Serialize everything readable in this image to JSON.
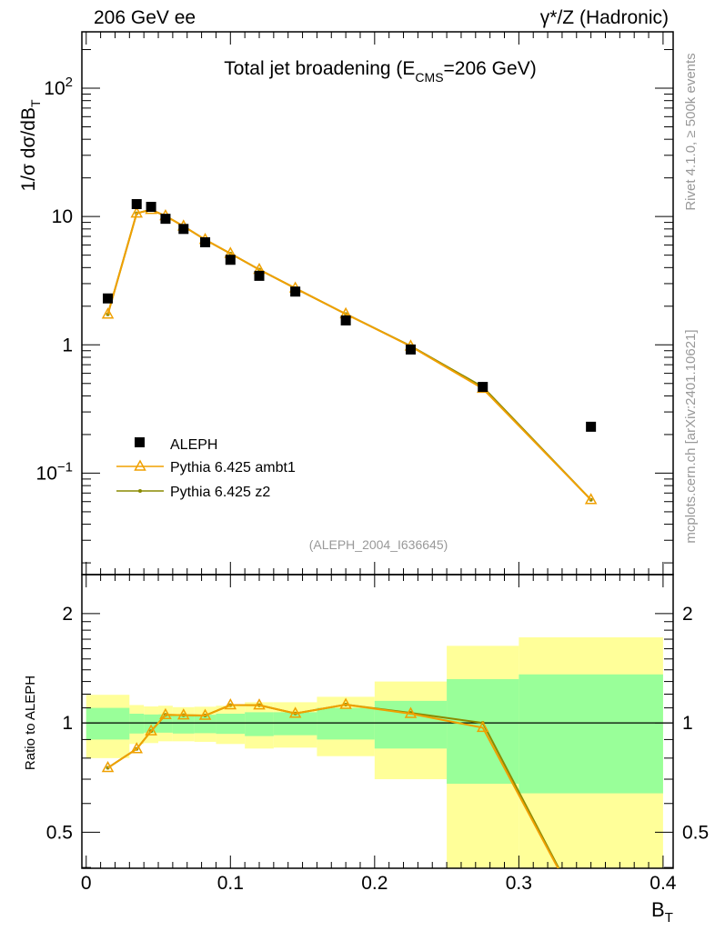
{
  "header": {
    "left": "206 GeV ee",
    "right": "γ*/Z (Hadronic)"
  },
  "side": {
    "rivet": "Rivet 4.1.0, ≥ 500k events",
    "mcplots": "mcplots.cern.ch [arXiv:2401.10621]"
  },
  "chart_data": {
    "type": "scatter",
    "title": "Total jet broadening (E_CMS=206 GeV)",
    "title_main": "Total jet broadening (E",
    "title_sub": "CMS",
    "title_end": "=206 GeV)",
    "analysis_id": "(ALEPH_2004_I636645)",
    "xlabel": "B",
    "xlabel_sub": "T",
    "ylabel": "1/σ  dσ/dB",
    "ylabel_sub": "T",
    "ratio_ylabel": "Ratio to ALEPH",
    "xlim": [
      -0.003,
      0.407
    ],
    "ylim": [
      0.0162,
      275
    ],
    "ratio_ylim": [
      0.398,
      2.56
    ],
    "x_ticks": [
      "0",
      "0.1",
      "0.2",
      "0.3",
      "0.4"
    ],
    "x_tick_values": [
      0,
      0.1,
      0.2,
      0.3,
      0.4
    ],
    "y_ticks": [
      {
        "v": 0.1,
        "base": "10",
        "exp": "−1"
      },
      {
        "v": 1,
        "base": "1",
        "exp": ""
      },
      {
        "v": 10,
        "base": "10",
        "exp": ""
      },
      {
        "v": 100,
        "base": "10",
        "exp": "2"
      }
    ],
    "ratio_ticks": [
      {
        "v": 0.5,
        "label": "0.5"
      },
      {
        "v": 1,
        "label": "1"
      },
      {
        "v": 2,
        "label": "2"
      }
    ],
    "bin_edges": [
      0,
      0.03,
      0.04,
      0.05,
      0.06,
      0.075,
      0.09,
      0.11,
      0.13,
      0.16,
      0.2,
      0.25,
      0.3,
      0.4
    ],
    "x": [
      0.015,
      0.035,
      0.045,
      0.055,
      0.0675,
      0.0825,
      0.1,
      0.12,
      0.145,
      0.18,
      0.225,
      0.275,
      0.35
    ],
    "series": [
      {
        "name": "ALEPH",
        "color": "#000000",
        "values": [
          2.3,
          12.5,
          11.9,
          9.6,
          8.0,
          6.3,
          4.6,
          3.45,
          2.6,
          1.55,
          0.92,
          0.47,
          0.23
        ]
      },
      {
        "name": "Pythia 6.425 ambt1",
        "color": "#f0a000",
        "values": [
          1.73,
          10.6,
          11.3,
          10.1,
          8.4,
          6.6,
          5.15,
          3.86,
          2.76,
          1.74,
          0.975,
          0.456,
          0.062
        ]
      },
      {
        "name": "Pythia 6.425 z2",
        "color": "#8a8a00",
        "values": [
          1.73,
          10.6,
          11.3,
          10.1,
          8.4,
          6.6,
          5.15,
          3.86,
          2.76,
          1.74,
          0.98,
          0.47,
          0.062
        ]
      }
    ],
    "band_1sigma": [
      [
        0.9,
        1.1
      ],
      [
        0.935,
        1.06
      ],
      [
        0.94,
        1.055
      ],
      [
        0.94,
        1.056
      ],
      [
        0.935,
        1.05
      ],
      [
        0.937,
        1.053
      ],
      [
        0.933,
        1.06
      ],
      [
        0.92,
        1.07
      ],
      [
        0.925,
        1.07
      ],
      [
        0.9,
        1.1
      ],
      [
        0.85,
        1.15
      ],
      [
        0.68,
        1.32
      ],
      [
        0.64,
        1.36
      ]
    ],
    "band_total": [
      [
        0.8,
        1.195
      ],
      [
        0.875,
        1.12
      ],
      [
        0.88,
        1.11
      ],
      [
        0.89,
        1.115
      ],
      [
        0.89,
        1.105
      ],
      [
        0.887,
        1.108
      ],
      [
        0.875,
        1.115
      ],
      [
        0.85,
        1.14
      ],
      [
        0.855,
        1.14
      ],
      [
        0.81,
        1.18
      ],
      [
        0.7,
        1.3
      ],
      [
        0.3,
        1.63
      ],
      [
        0.3,
        1.72
      ]
    ],
    "colors": {
      "band_1sigma": "#99ff99",
      "band_total": "#ffff99"
    }
  }
}
